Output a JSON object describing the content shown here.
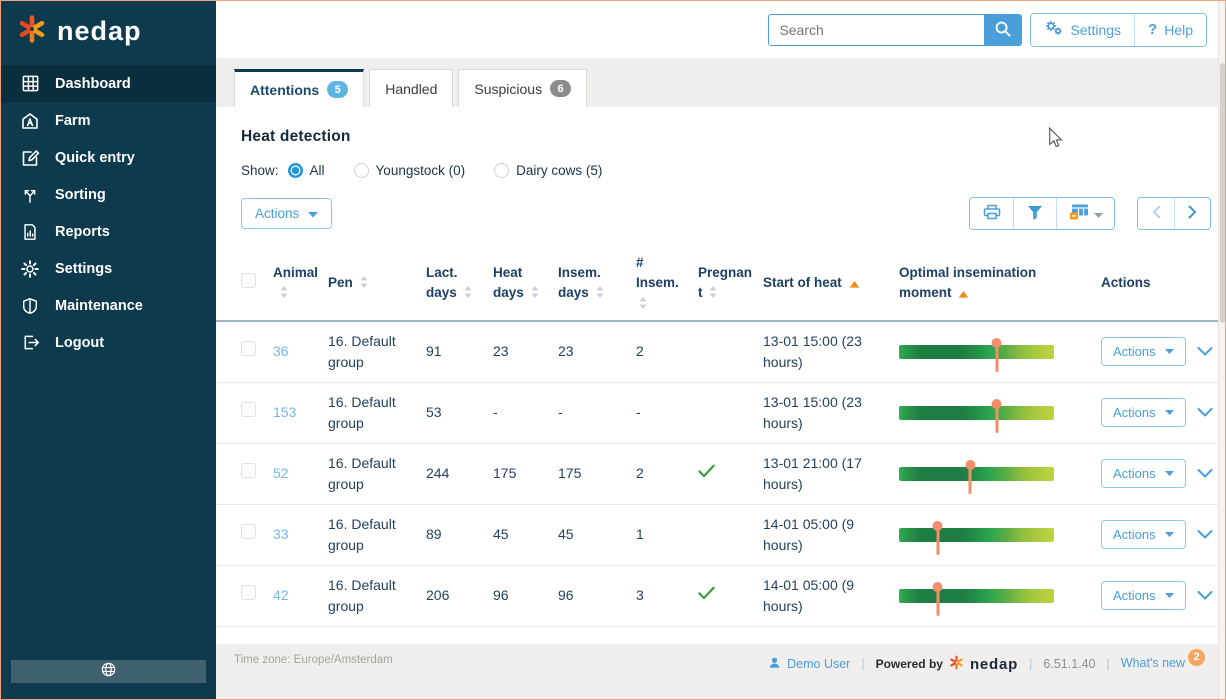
{
  "brand": {
    "name": "nedap"
  },
  "sidebar": {
    "items": [
      {
        "label": "Dashboard",
        "icon": "dashboard",
        "active": true
      },
      {
        "label": "Farm",
        "icon": "farm",
        "active": false
      },
      {
        "label": "Quick entry",
        "icon": "quick-entry",
        "active": false
      },
      {
        "label": "Sorting",
        "icon": "sorting",
        "active": false
      },
      {
        "label": "Reports",
        "icon": "reports",
        "active": false
      },
      {
        "label": "Settings",
        "icon": "settings",
        "active": false
      },
      {
        "label": "Maintenance",
        "icon": "maintenance",
        "active": false
      },
      {
        "label": "Logout",
        "icon": "logout",
        "active": false
      }
    ]
  },
  "header": {
    "search": {
      "placeholder": "Search",
      "value": ""
    },
    "settings_label": "Settings",
    "help_mark": "?",
    "help_label": "Help"
  },
  "tabs": [
    {
      "label": "Attentions",
      "badge": "5",
      "active": true
    },
    {
      "label": "Handled",
      "badge": "",
      "active": false
    },
    {
      "label": "Suspicious",
      "badge": "6",
      "active": false
    }
  ],
  "page": {
    "title": "Heat detection",
    "show_label": "Show:",
    "filters": [
      {
        "label": "All",
        "selected": true
      },
      {
        "label": "Youngstock (0)",
        "selected": false
      },
      {
        "label": "Dairy cows (5)",
        "selected": false
      }
    ],
    "bulk_actions_label": "Actions"
  },
  "table": {
    "columns": [
      {
        "label": "Animal",
        "sort": "neutral"
      },
      {
        "label": "Pen",
        "sort": "neutral"
      },
      {
        "label": "Lact. days",
        "sort": "neutral"
      },
      {
        "label": "Heat days",
        "sort": "neutral"
      },
      {
        "label": "Insem. days",
        "sort": "neutral"
      },
      {
        "label": "# Insem.",
        "sort": "neutral"
      },
      {
        "label": "Pregnant",
        "sort": "neutral"
      },
      {
        "label": "Start of heat",
        "sort": "asc"
      },
      {
        "label": "Optimal insemination moment",
        "sort": "asc"
      },
      {
        "label": "Actions",
        "sort": "none"
      }
    ],
    "row_action_label": "Actions",
    "rows": [
      {
        "animal": "36",
        "pen": "16. Default group",
        "lact_days": "91",
        "heat_days": "23",
        "insem_days": "23",
        "num_insem": "2",
        "pregnant": false,
        "start_of_heat": "13-01 15:00  (23 hours)",
        "marker_pct": 63
      },
      {
        "animal": "153",
        "pen": "16. Default group",
        "lact_days": "53",
        "heat_days": "-",
        "insem_days": "-",
        "num_insem": "-",
        "pregnant": false,
        "start_of_heat": "13-01 15:00  (23 hours)",
        "marker_pct": 63
      },
      {
        "animal": "52",
        "pen": "16. Default group",
        "lact_days": "244",
        "heat_days": "175",
        "insem_days": "175",
        "num_insem": "2",
        "pregnant": true,
        "start_of_heat": "13-01 21:00  (17 hours)",
        "marker_pct": 46
      },
      {
        "animal": "33",
        "pen": "16. Default group",
        "lact_days": "89",
        "heat_days": "45",
        "insem_days": "45",
        "num_insem": "1",
        "pregnant": false,
        "start_of_heat": "14-01 05:00  (9 hours)",
        "marker_pct": 25
      },
      {
        "animal": "42",
        "pen": "16. Default group",
        "lact_days": "206",
        "heat_days": "96",
        "insem_days": "96",
        "num_insem": "3",
        "pregnant": true,
        "start_of_heat": "14-01 05:00  (9 hours)",
        "marker_pct": 25
      }
    ]
  },
  "footer": {
    "timezone": "Time zone: Europe/Amsterdam",
    "user": "Demo User",
    "powered_by": "Powered by",
    "version": "6.51.1.40",
    "whats_new": "What's new",
    "whats_new_badge": "2"
  },
  "colors": {
    "sidebar": "#0d3a4d",
    "accent_blue": "#4a9edb",
    "brand_orange": "#f05a23",
    "sort_orange": "#f08c1e",
    "green_check": "#3da03f",
    "pin_salmon": "#f28f6a"
  }
}
